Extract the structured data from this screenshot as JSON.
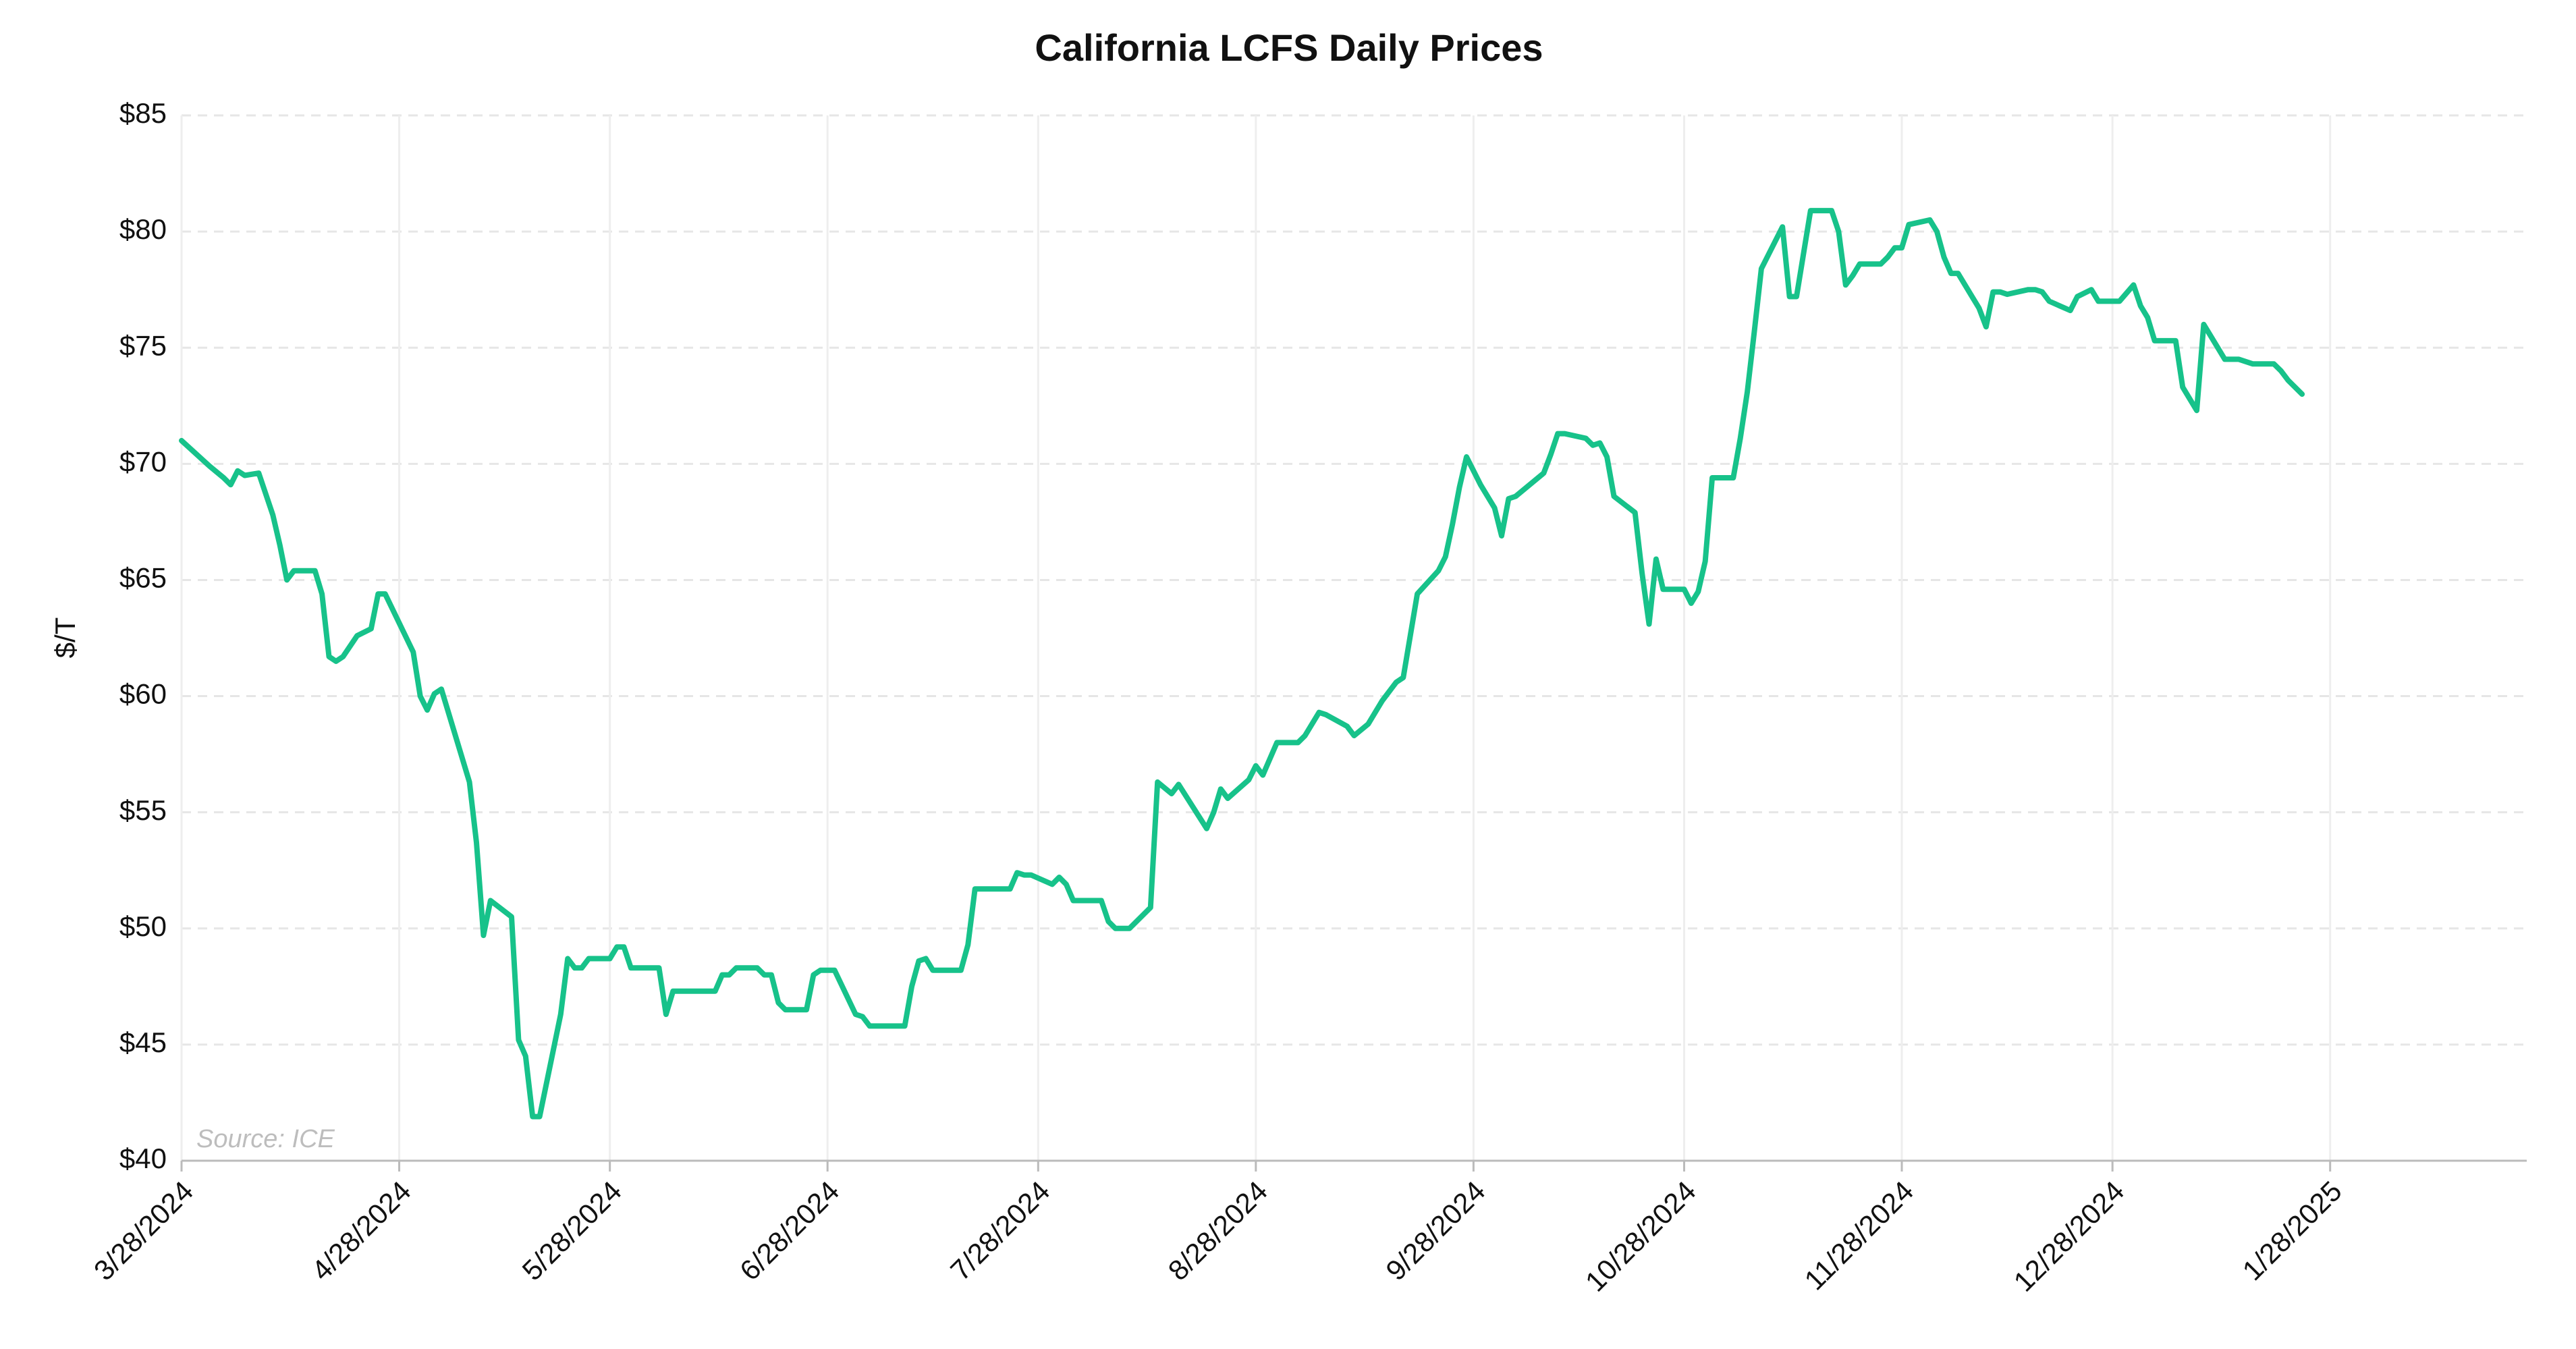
{
  "chart_data": {
    "type": "line",
    "title": "California LCFS Daily Prices",
    "y_label": "$/T",
    "annotation": "Source: ICE",
    "color": "#17c28a",
    "grid": true,
    "x": [
      "3/28/2024",
      "4/1/2024",
      "4/3/2024",
      "4/4/2024",
      "4/5/2024",
      "4/6/2024",
      "4/8/2024",
      "4/10/2024",
      "4/11/2024",
      "4/12/2024",
      "4/13/2024",
      "4/16/2024",
      "4/17/2024",
      "4/18/2024",
      "4/19/2024",
      "4/20/2024",
      "4/22/2024",
      "4/24/2024",
      "4/25/2024",
      "4/26/2024",
      "4/30/2024",
      "5/1/2024",
      "5/2/2024",
      "5/3/2024",
      "5/4/2024",
      "5/8/2024",
      "5/9/2024",
      "5/10/2024",
      "5/11/2024",
      "5/14/2024",
      "5/15/2024",
      "5/16/2024",
      "5/17/2024",
      "5/18/2024",
      "5/21/2024",
      "5/22/2024",
      "5/23/2024",
      "5/24/2024",
      "5/25/2024",
      "5/28/2024",
      "5/29/2024",
      "5/30/2024",
      "5/31/2024",
      "6/4/2024",
      "6/5/2024",
      "6/6/2024",
      "6/12/2024",
      "6/13/2024",
      "6/14/2024",
      "6/15/2024",
      "6/18/2024",
      "6/19/2024",
      "6/20/2024",
      "6/21/2024",
      "6/22/2024",
      "6/25/2024",
      "6/26/2024",
      "6/27/2024",
      "6/29/2024",
      "7/2/2024",
      "7/3/2024",
      "7/4/2024",
      "7/9/2024",
      "7/10/2024",
      "7/11/2024",
      "7/12/2024",
      "7/13/2024",
      "7/17/2024",
      "7/18/2024",
      "7/19/2024",
      "7/24/2024",
      "7/25/2024",
      "7/26/2024",
      "7/27/2024",
      "7/30/2024",
      "7/31/2024",
      "8/1/2024",
      "8/2/2024",
      "8/6/2024",
      "8/7/2024",
      "8/8/2024",
      "8/10/2024",
      "8/13/2024",
      "8/14/2024",
      "8/16/2024",
      "8/17/2024",
      "8/21/2024",
      "8/22/2024",
      "8/23/2024",
      "8/24/2024",
      "8/27/2024",
      "8/28/2024",
      "8/29/2024",
      "8/31/2024",
      "9/3/2024",
      "9/4/2024",
      "9/6/2024",
      "9/7/2024",
      "9/10/2024",
      "9/11/2024",
      "9/13/2024",
      "9/15/2024",
      "9/17/2024",
      "9/18/2024",
      "9/19/2024",
      "9/20/2024",
      "9/23/2024",
      "9/24/2024",
      "9/25/2024",
      "9/26/2024",
      "9/27/2024",
      "9/29/2024",
      "10/1/2024",
      "10/2/2024",
      "10/3/2024",
      "10/4/2024",
      "10/8/2024",
      "10/9/2024",
      "10/10/2024",
      "10/11/2024",
      "10/14/2024",
      "10/15/2024",
      "10/16/2024",
      "10/17/2024",
      "10/18/2024",
      "10/21/2024",
      "10/22/2024",
      "10/23/2024",
      "10/24/2024",
      "10/25/2024",
      "10/28/2024",
      "10/29/2024",
      "10/30/2024",
      "10/31/2024",
      "11/1/2024",
      "11/4/2024",
      "11/5/2024",
      "11/6/2024",
      "11/7/2024",
      "11/8/2024",
      "11/11/2024",
      "11/12/2024",
      "11/13/2024",
      "11/15/2024",
      "11/18/2024",
      "11/19/2024",
      "11/20/2024",
      "11/21/2024",
      "11/22/2024",
      "11/25/2024",
      "11/26/2024",
      "11/27/2024",
      "11/28/2024",
      "11/29/2024",
      "12/2/2024",
      "12/3/2024",
      "12/4/2024",
      "12/5/2024",
      "12/6/2024",
      "12/9/2024",
      "12/10/2024",
      "12/11/2024",
      "12/12/2024",
      "12/13/2024",
      "12/16/2024",
      "12/17/2024",
      "12/18/2024",
      "12/19/2024",
      "12/22/2024",
      "12/23/2024",
      "12/25/2024",
      "12/26/2024",
      "12/29/2024",
      "12/31/2024",
      "1/1/2025",
      "1/2/2025",
      "1/3/2025",
      "1/6/2025",
      "1/7/2025",
      "1/9/2025",
      "1/10/2025",
      "1/13/2025",
      "1/15/2025",
      "1/17/2025",
      "1/20/2025",
      "1/21/2025",
      "1/22/2025",
      "1/24/2025"
    ],
    "values": [
      71.0,
      69.9,
      69.4,
      69.1,
      69.7,
      69.5,
      69.6,
      67.8,
      66.5,
      65.0,
      65.4,
      65.4,
      64.4,
      61.7,
      61.5,
      61.7,
      62.6,
      62.9,
      64.4,
      64.4,
      61.9,
      60.0,
      59.4,
      60.1,
      60.3,
      56.3,
      53.7,
      49.7,
      51.2,
      50.5,
      45.2,
      44.5,
      41.9,
      41.9,
      46.3,
      48.7,
      48.3,
      48.3,
      48.7,
      48.7,
      49.2,
      49.2,
      48.3,
      48.3,
      46.3,
      47.3,
      47.3,
      48.0,
      48.0,
      48.3,
      48.3,
      48.0,
      48.0,
      46.8,
      46.5,
      46.5,
      48.0,
      48.2,
      48.2,
      46.3,
      46.2,
      45.8,
      45.8,
      47.5,
      48.6,
      48.7,
      48.2,
      48.2,
      49.3,
      51.7,
      51.7,
      52.4,
      52.3,
      52.3,
      51.9,
      52.2,
      51.9,
      51.2,
      51.2,
      50.3,
      50.0,
      50.0,
      50.9,
      56.3,
      55.8,
      56.2,
      54.3,
      55.0,
      56.0,
      55.6,
      56.4,
      57.0,
      56.6,
      58.0,
      58.0,
      58.3,
      59.3,
      59.2,
      58.7,
      58.3,
      58.8,
      59.8,
      60.6,
      60.8,
      62.6,
      64.4,
      65.4,
      66.0,
      67.4,
      69.0,
      70.3,
      69.1,
      68.1,
      66.9,
      68.5,
      68.6,
      69.6,
      70.4,
      71.3,
      71.3,
      71.1,
      70.8,
      70.9,
      70.3,
      68.6,
      67.9,
      65.3,
      63.1,
      65.9,
      64.6,
      64.6,
      64.0,
      64.5,
      65.8,
      69.4,
      69.4,
      71.1,
      73.1,
      75.7,
      78.4,
      80.2,
      77.2,
      77.2,
      80.9,
      80.9,
      80.0,
      77.7,
      78.1,
      78.6,
      78.6,
      78.9,
      79.3,
      79.3,
      80.3,
      80.5,
      80.0,
      78.9,
      78.2,
      78.2,
      76.7,
      75.9,
      77.4,
      77.4,
      77.3,
      77.5,
      77.5,
      77.4,
      77.0,
      76.6,
      77.2,
      77.5,
      77.0,
      77.0,
      77.7,
      76.8,
      76.3,
      75.3,
      75.3,
      73.3,
      72.3,
      76.0,
      74.5,
      74.5,
      74.3,
      74.3,
      74.0,
      73.6,
      73.0
    ],
    "xlim": [
      "3/28/2024",
      "2/25/2025"
    ],
    "xticks": [
      "3/28/2024",
      "4/28/2024",
      "5/28/2024",
      "6/28/2024",
      "7/28/2024",
      "8/28/2024",
      "9/28/2024",
      "10/28/2024",
      "11/28/2024",
      "12/28/2024",
      "1/28/2025"
    ],
    "ylim": [
      40,
      85
    ],
    "yticks": [
      {
        "value": 40,
        "label": "$40"
      },
      {
        "value": 45,
        "label": "$45"
      },
      {
        "value": 50,
        "label": "$50"
      },
      {
        "value": 55,
        "label": "$55"
      },
      {
        "value": 60,
        "label": "$60"
      },
      {
        "value": 65,
        "label": "$65"
      },
      {
        "value": 70,
        "label": "$70"
      },
      {
        "value": 75,
        "label": "$75"
      },
      {
        "value": 80,
        "label": "$80"
      },
      {
        "value": 85,
        "label": "$85"
      }
    ]
  }
}
